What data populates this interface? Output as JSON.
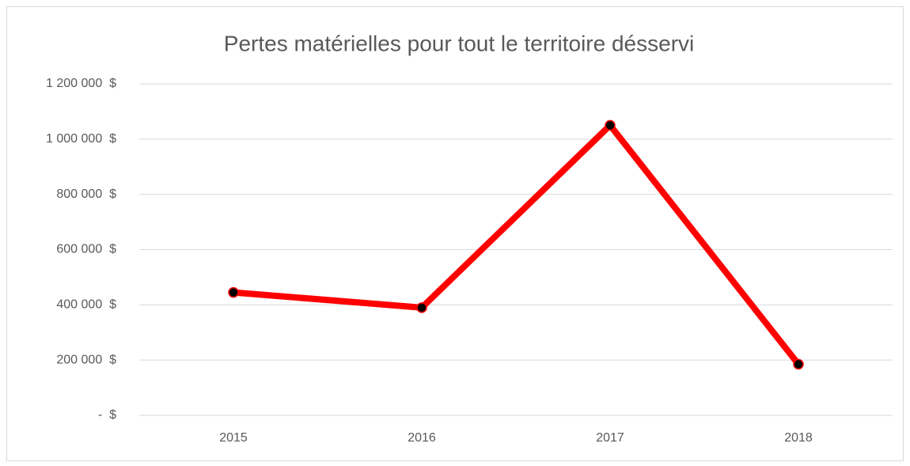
{
  "chart_data": {
    "type": "line",
    "title": "Pertes matérielles pour tout le territoire désservi",
    "categories": [
      "2015",
      "2016",
      "2017",
      "2018"
    ],
    "series": [
      {
        "name": "Pertes matérielles",
        "color": "#ff0000",
        "values": [
          445000,
          390000,
          1050000,
          185000
        ]
      }
    ],
    "ylim": [
      0,
      1200000
    ],
    "yticks": [
      {
        "value": 0,
        "label": "-  $"
      },
      {
        "value": 200000,
        "label": "200 000  $"
      },
      {
        "value": 400000,
        "label": "400 000  $"
      },
      {
        "value": 600000,
        "label": "600 000  $"
      },
      {
        "value": 800000,
        "label": "800 000  $"
      },
      {
        "value": 1000000,
        "label": "1 000 000  $"
      },
      {
        "value": 1200000,
        "label": "1 200 000  $"
      }
    ],
    "grid": true,
    "marker_color": "#000000"
  }
}
